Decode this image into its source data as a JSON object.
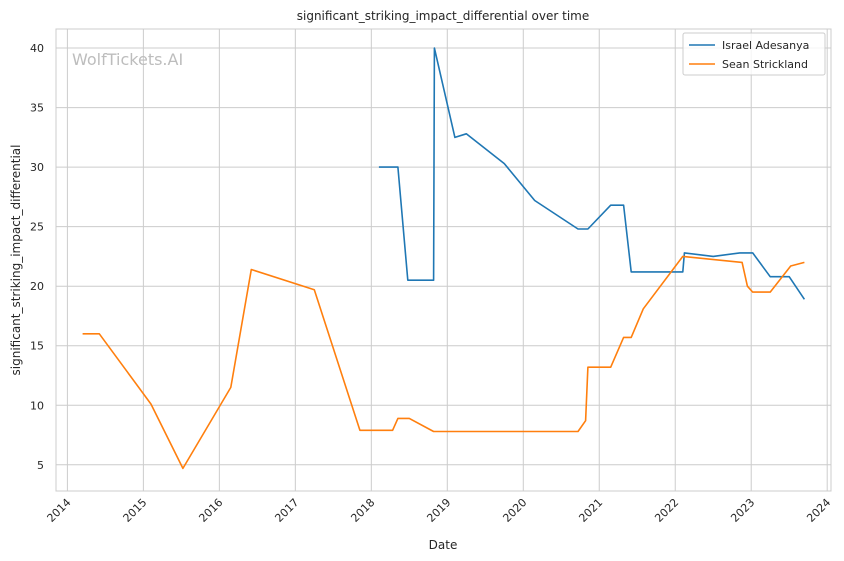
{
  "chart_data": {
    "type": "line",
    "title": "significant_striking_impact_differential over time",
    "xlabel": "Date",
    "ylabel": "significant_striking_impact_differential",
    "watermark": "WolfTickets.AI",
    "xlim": [
      2013.85,
      2024.05
    ],
    "ylim": [
      2.8,
      41.6
    ],
    "xticks": [
      2014,
      2015,
      2016,
      2017,
      2018,
      2019,
      2020,
      2021,
      2022,
      2023,
      2024
    ],
    "xtick_labels": [
      "2014",
      "2015",
      "2016",
      "2017",
      "2018",
      "2019",
      "2020",
      "2021",
      "2022",
      "2023",
      "2024"
    ],
    "yticks": [
      5,
      10,
      15,
      20,
      25,
      30,
      35,
      40
    ],
    "ytick_labels": [
      "5",
      "10",
      "15",
      "20",
      "25",
      "30",
      "35",
      "40"
    ],
    "grid": true,
    "legend": "top-right",
    "series": [
      {
        "name": "Israel Adesanya",
        "color": "#1f77b4",
        "points": [
          [
            2018.1,
            30.0
          ],
          [
            2018.35,
            30.0
          ],
          [
            2018.48,
            20.5
          ],
          [
            2018.82,
            20.5
          ],
          [
            2018.83,
            40.0
          ],
          [
            2019.1,
            32.5
          ],
          [
            2019.25,
            32.8
          ],
          [
            2019.75,
            30.3
          ],
          [
            2020.15,
            27.2
          ],
          [
            2020.72,
            24.8
          ],
          [
            2020.85,
            24.8
          ],
          [
            2021.15,
            26.8
          ],
          [
            2021.32,
            26.8
          ],
          [
            2021.42,
            21.2
          ],
          [
            2022.1,
            21.2
          ],
          [
            2022.12,
            22.8
          ],
          [
            2022.5,
            22.5
          ],
          [
            2022.85,
            22.8
          ],
          [
            2023.02,
            22.8
          ],
          [
            2023.25,
            20.8
          ],
          [
            2023.5,
            20.8
          ],
          [
            2023.7,
            18.9
          ]
        ]
      },
      {
        "name": "Sean Strickland",
        "color": "#ff7f0e",
        "points": [
          [
            2014.2,
            16.0
          ],
          [
            2014.42,
            16.0
          ],
          [
            2015.1,
            10.1
          ],
          [
            2015.52,
            4.7
          ],
          [
            2016.15,
            11.5
          ],
          [
            2016.42,
            21.4
          ],
          [
            2017.25,
            19.7
          ],
          [
            2017.85,
            7.9
          ],
          [
            2018.28,
            7.9
          ],
          [
            2018.35,
            8.9
          ],
          [
            2018.5,
            8.9
          ],
          [
            2018.82,
            7.8
          ],
          [
            2020.72,
            7.8
          ],
          [
            2020.82,
            8.7
          ],
          [
            2020.85,
            13.2
          ],
          [
            2021.15,
            13.2
          ],
          [
            2021.32,
            15.7
          ],
          [
            2021.42,
            15.7
          ],
          [
            2021.58,
            18.1
          ],
          [
            2022.1,
            22.5
          ],
          [
            2022.88,
            22.0
          ],
          [
            2022.95,
            20.0
          ],
          [
            2023.02,
            19.5
          ],
          [
            2023.25,
            19.5
          ],
          [
            2023.52,
            21.7
          ],
          [
            2023.7,
            22.0
          ]
        ]
      }
    ]
  }
}
